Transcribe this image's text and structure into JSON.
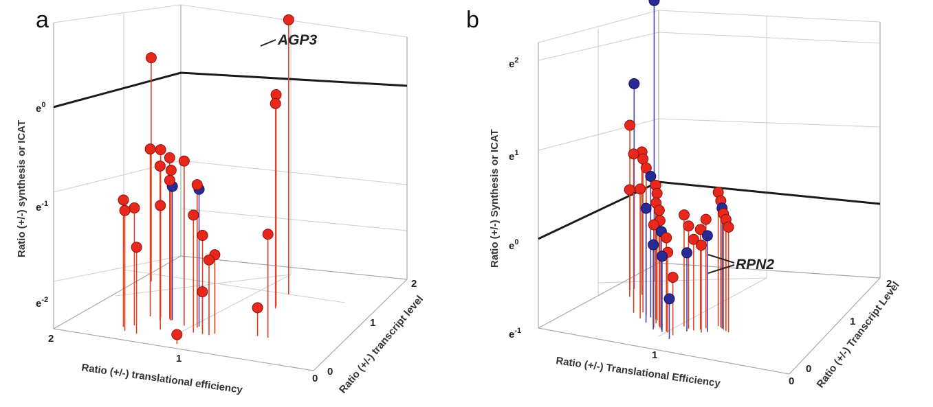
{
  "chart_data": [
    {
      "type": "scatter",
      "panel_label": "a",
      "projection": "3d-stem",
      "xlabel": "Ratio (+/-) translational efficiency",
      "ylabel": "Ratio (+/-) transcript level",
      "zlabel": "Ratio (+/-) synthesis or ICAT",
      "x_ticks": [
        "2",
        "1",
        "0"
      ],
      "y_ticks": [
        "0",
        "1",
        "2"
      ],
      "z_ticks": [
        "e-2",
        "e-1",
        "e0"
      ],
      "z_scale": "natural-log",
      "reference_plane": "e0",
      "colors": {
        "red": "#e8281c",
        "blue": "#2a2a96",
        "stem_red": "#e0401f",
        "stem_blue": "#4444b0"
      },
      "annotations": [
        {
          "text": "AGP3"
        }
      ],
      "points": [
        {
          "x": 1.91,
          "y": 1.35,
          "z": 0.08,
          "color": "red"
        },
        {
          "x": 0.95,
          "y": 1.55,
          "z": 0.62,
          "color": "red"
        },
        {
          "x": 0.9,
          "y": 1.25,
          "z": -0.05,
          "color": "red"
        },
        {
          "x": 0.88,
          "y": 1.2,
          "z": -0.12,
          "color": "red"
        },
        {
          "x": 1.55,
          "y": 0.6,
          "z": -0.52,
          "color": "red"
        },
        {
          "x": 1.48,
          "y": 0.62,
          "z": -0.52,
          "color": "red"
        },
        {
          "x": 1.45,
          "y": 0.55,
          "z": -0.66,
          "color": "red"
        },
        {
          "x": 1.42,
          "y": 0.64,
          "z": -0.6,
          "color": "red"
        },
        {
          "x": 1.38,
          "y": 0.58,
          "z": -0.7,
          "color": "red"
        },
        {
          "x": 1.4,
          "y": 0.6,
          "z": -0.82,
          "color": "red"
        },
        {
          "x": 1.38,
          "y": 0.6,
          "z": -0.88,
          "color": "blue"
        },
        {
          "x": 1.25,
          "y": 0.52,
          "z": -0.55,
          "color": "red"
        },
        {
          "x": 1.15,
          "y": 0.52,
          "z": -0.78,
          "color": "red"
        },
        {
          "x": 1.15,
          "y": 0.55,
          "z": -0.84,
          "color": "blue"
        },
        {
          "x": 1.35,
          "y": 0.35,
          "z": -0.98,
          "color": "red"
        },
        {
          "x": 1.55,
          "y": 0.35,
          "z": -1.05,
          "color": "red"
        },
        {
          "x": 1.6,
          "y": 0.28,
          "z": -0.95,
          "color": "red"
        },
        {
          "x": 1.55,
          "y": 0.2,
          "z": -1.02,
          "color": "red"
        },
        {
          "x": 1.12,
          "y": 0.4,
          "z": -1.05,
          "color": "red"
        },
        {
          "x": 1.05,
          "y": 0.4,
          "z": -1.25,
          "color": "red"
        },
        {
          "x": 1.0,
          "y": 0.4,
          "z": -1.5,
          "color": "red"
        },
        {
          "x": 0.98,
          "y": 0.45,
          "z": -1.46,
          "color": "red"
        },
        {
          "x": 1.45,
          "y": 0.18,
          "z": -1.38,
          "color": "red"
        },
        {
          "x": 1.1,
          "y": 0.5,
          "z": -1.9,
          "color": "red"
        },
        {
          "x": 0.62,
          "y": 0.55,
          "z": -1.2,
          "color": "red"
        },
        {
          "x": 1.1,
          "y": 0.1,
          "z": -2.2,
          "color": "red"
        },
        {
          "x": 0.7,
          "y": 0.55,
          "z": -2.0,
          "color": "red"
        }
      ]
    },
    {
      "type": "scatter",
      "panel_label": "b",
      "projection": "3d-stem",
      "xlabel": "Ratio (+/-) Translational Efficiency",
      "ylabel": "Ratio (+/-) Transcript Level",
      "zlabel": "Ratio (+/-) Synthesis or ICAT",
      "x_ticks": [
        "1",
        "0"
      ],
      "y_ticks": [
        "0",
        "1",
        "2"
      ],
      "z_ticks": [
        "e-1",
        "e0",
        "e1",
        "e2"
      ],
      "z_scale": "natural-log",
      "reference_plane": "e0",
      "colors": {
        "red": "#e8281c",
        "blue": "#2a2a96",
        "stem_red": "#e0401f",
        "stem_blue": "#4444b0"
      },
      "annotations": [
        {
          "text": "RPN2"
        }
      ],
      "points": [
        {
          "x": 1.82,
          "y": 1.55,
          "z": 2.15,
          "color": "blue"
        },
        {
          "x": 1.86,
          "y": 1.3,
          "z": 1.3,
          "color": "blue"
        },
        {
          "x": 1.87,
          "y": 1.25,
          "z": 0.85,
          "color": "red"
        },
        {
          "x": 1.75,
          "y": 1.2,
          "z": 0.6,
          "color": "red"
        },
        {
          "x": 1.8,
          "y": 1.1,
          "z": 0.2,
          "color": "red"
        },
        {
          "x": 1.6,
          "y": 0.75,
          "z": 0.78,
          "color": "red"
        },
        {
          "x": 1.55,
          "y": 0.8,
          "z": 0.72,
          "color": "red"
        },
        {
          "x": 1.5,
          "y": 0.75,
          "z": 0.65,
          "color": "red"
        },
        {
          "x": 1.45,
          "y": 0.72,
          "z": 0.58,
          "color": "blue"
        },
        {
          "x": 1.4,
          "y": 0.7,
          "z": 0.5,
          "color": "red"
        },
        {
          "x": 1.38,
          "y": 0.68,
          "z": 0.42,
          "color": "red"
        },
        {
          "x": 1.5,
          "y": 0.65,
          "z": 0.45,
          "color": "red"
        },
        {
          "x": 1.35,
          "y": 0.6,
          "z": 0.35,
          "color": "red"
        },
        {
          "x": 1.42,
          "y": 0.58,
          "z": 0.28,
          "color": "blue"
        },
        {
          "x": 1.3,
          "y": 0.55,
          "z": 0.3,
          "color": "red"
        },
        {
          "x": 1.28,
          "y": 0.52,
          "z": 0.2,
          "color": "red"
        },
        {
          "x": 1.32,
          "y": 0.5,
          "z": 0.15,
          "color": "red"
        },
        {
          "x": 1.25,
          "y": 0.48,
          "z": 0.1,
          "color": "blue"
        },
        {
          "x": 1.2,
          "y": 0.46,
          "z": 0.05,
          "color": "red"
        },
        {
          "x": 1.3,
          "y": 0.45,
          "z": -0.05,
          "color": "blue"
        },
        {
          "x": 1.18,
          "y": 0.44,
          "z": -0.1,
          "color": "red"
        },
        {
          "x": 1.22,
          "y": 0.43,
          "z": -0.15,
          "color": "blue"
        },
        {
          "x": 0.95,
          "y": 0.8,
          "z": 0.5,
          "color": "red"
        },
        {
          "x": 0.92,
          "y": 0.78,
          "z": 0.42,
          "color": "red"
        },
        {
          "x": 0.9,
          "y": 0.76,
          "z": 0.35,
          "color": "blue"
        },
        {
          "x": 0.88,
          "y": 0.74,
          "z": 0.3,
          "color": "red"
        },
        {
          "x": 0.85,
          "y": 0.72,
          "z": 0.25,
          "color": "red"
        },
        {
          "x": 0.82,
          "y": 0.7,
          "z": 0.18,
          "color": "red"
        },
        {
          "x": 1.0,
          "y": 0.7,
          "z": 0.22,
          "color": "red"
        },
        {
          "x": 1.02,
          "y": 0.65,
          "z": 0.12,
          "color": "red"
        },
        {
          "x": 0.95,
          "y": 0.62,
          "z": 0.08,
          "color": "blue"
        },
        {
          "x": 1.05,
          "y": 0.6,
          "z": 0.02,
          "color": "red"
        },
        {
          "x": 0.98,
          "y": 0.58,
          "z": -0.02,
          "color": "red"
        },
        {
          "x": 1.1,
          "y": 0.62,
          "z": 0.15,
          "color": "red"
        },
        {
          "x": 1.15,
          "y": 0.65,
          "z": 0.25,
          "color": "red"
        },
        {
          "x": 1.08,
          "y": 0.55,
          "z": -0.12,
          "color": "blue"
        },
        {
          "x": 1.12,
          "y": 0.4,
          "z": -0.35,
          "color": "red"
        },
        {
          "x": 1.1,
          "y": 0.3,
          "z": -0.55,
          "color": "blue"
        }
      ]
    }
  ]
}
